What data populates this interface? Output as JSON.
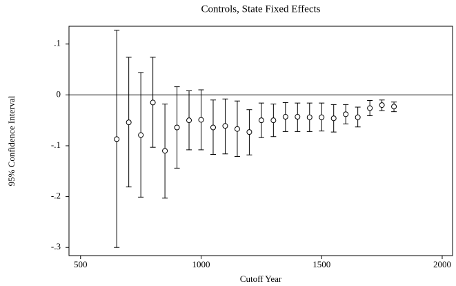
{
  "chart_data": {
    "type": "errorbar",
    "title": "Controls, State Fixed Effects",
    "x_label": "Cutoff Year",
    "y_label": "95% Confidence Interval",
    "x": [
      650,
      700,
      750,
      800,
      850,
      900,
      950,
      1000,
      1050,
      1100,
      1150,
      1200,
      1250,
      1300,
      1350,
      1400,
      1450,
      1500,
      1550,
      1600,
      1650,
      1700,
      1750,
      1800
    ],
    "values": [
      -0.087,
      -0.054,
      -0.079,
      -0.015,
      -0.11,
      -0.064,
      -0.05,
      -0.049,
      -0.064,
      -0.061,
      -0.067,
      -0.073,
      -0.05,
      -0.05,
      -0.043,
      -0.043,
      -0.044,
      -0.044,
      -0.046,
      -0.038,
      -0.044,
      -0.026,
      -0.02,
      -0.023
    ],
    "lower": [
      -0.3,
      -0.181,
      -0.201,
      -0.103,
      -0.203,
      -0.144,
      -0.108,
      -0.108,
      -0.117,
      -0.116,
      -0.121,
      -0.118,
      -0.084,
      -0.082,
      -0.072,
      -0.072,
      -0.072,
      -0.071,
      -0.073,
      -0.057,
      -0.063,
      -0.041,
      -0.031,
      -0.033
    ],
    "upper": [
      0.127,
      0.074,
      0.044,
      0.074,
      -0.018,
      0.016,
      0.008,
      0.01,
      -0.01,
      -0.008,
      -0.012,
      -0.029,
      -0.016,
      -0.018,
      -0.015,
      -0.016,
      -0.016,
      -0.016,
      -0.019,
      -0.019,
      -0.024,
      -0.011,
      -0.01,
      -0.014
    ],
    "color": "#000000",
    "reference_line": 0,
    "xlim": [
      452,
      2043
    ],
    "xticks": [
      500,
      1000,
      1500,
      2000
    ],
    "ylim": [
      -0.316,
      0.135
    ],
    "yticks": [
      {
        "value": 0.1,
        "label": ".1"
      },
      0,
      {
        "value": -0.1,
        "label": "-.1"
      },
      {
        "value": -0.2,
        "label": "-.2"
      },
      {
        "value": -0.3,
        "label": "-.3"
      }
    ]
  }
}
